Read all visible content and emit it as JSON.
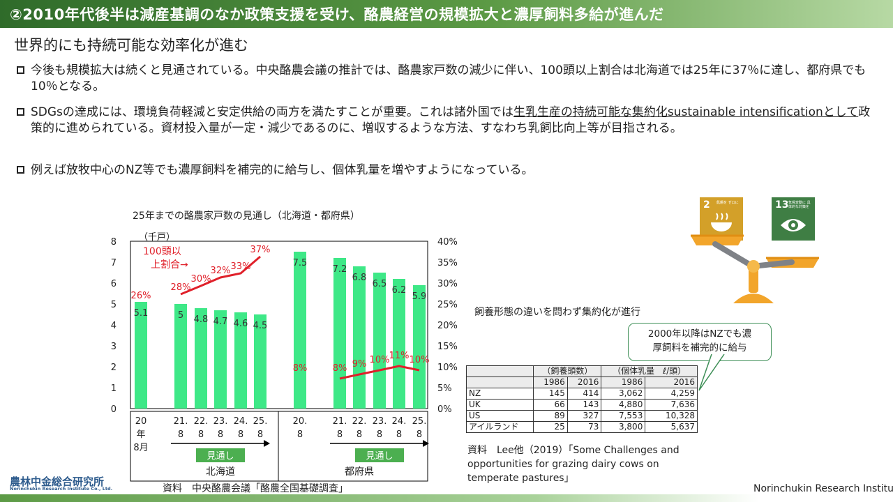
{
  "header": {
    "title": "②2010年代後半は減産基調のなか政策支援を受け、酪農経営の規模拡大と濃厚飼料多給が進んだ"
  },
  "subtitle": "世界的にも持続可能な効率化が進む",
  "bullets": [
    {
      "text": "今後も規模拡大は続くと見通されている。中央酪農会議の推計では、酪農家戸数の減少に伴い、100頭以上割合は北海道では25年に37％に達し、都府県でも10％となる。"
    },
    {
      "pre": "SDGsの達成には、環境負荷軽減と安定供給の両方を満たすことが重要。これは諸外国では",
      "underlined": "生乳生産の持続可能な集約化sustainable intensificationとして",
      "post": "政策的に進められている。資材投入量が一定・減少であるのに、増収するような方法、すなわち乳飼比向上等が目指される。"
    },
    {
      "text": "例えば放牧中心のNZ等でも濃厚飼料を補完的に給与し、個体乳量を増やすようになっている。"
    }
  ],
  "chart_data": {
    "type": "bar",
    "title": "25年までの酪農家戸数の見通し（北海道・都府県）",
    "ylabel": "（千戸）",
    "ylim": [
      0,
      8
    ],
    "y2lim": [
      0,
      0.4
    ],
    "y_ticks": [
      "0",
      "1",
      "2",
      "3",
      "4",
      "5",
      "6",
      "7",
      "8"
    ],
    "y2_ticks": [
      "0%",
      "5%",
      "10%",
      "15%",
      "20%",
      "25%",
      "30%",
      "35%",
      "40%"
    ],
    "annotation": "100頭以上割合→",
    "forecast_label": "見通し",
    "groups": [
      {
        "name": "北海道",
        "categories": [
          "20年8月",
          "21.8",
          "22.8",
          "23.8",
          "24.8",
          "25.8"
        ],
        "cat_lines": [
          [
            "20",
            "年",
            "8月"
          ],
          [
            "21.",
            "8"
          ],
          [
            "22.",
            "8"
          ],
          [
            "23.",
            "8"
          ],
          [
            "24.",
            "8"
          ],
          [
            "25.",
            "8"
          ]
        ],
        "values": [
          5.1,
          5.0,
          4.8,
          4.7,
          4.6,
          4.5
        ],
        "share": [
          0.26,
          0.28,
          0.3,
          0.32,
          0.33,
          0.37
        ],
        "share_labels": [
          "26%",
          "28%",
          "30%",
          "32%",
          "33%",
          "37%"
        ]
      },
      {
        "name": "都府県",
        "categories": [
          "20.8",
          "21.8",
          "22.8",
          "23.8",
          "24.8",
          "25.8"
        ],
        "cat_lines": [
          [
            "20.",
            "8"
          ],
          [
            "21.",
            "8"
          ],
          [
            "22.",
            "8"
          ],
          [
            "23.",
            "8"
          ],
          [
            "24.",
            "8"
          ],
          [
            "25.",
            "8"
          ]
        ],
        "values": [
          7.5,
          7.2,
          6.8,
          6.5,
          6.2,
          5.9
        ],
        "share": [
          0.08,
          0.08,
          0.09,
          0.1,
          0.11,
          0.1
        ],
        "share_labels": [
          "8%",
          "8%",
          "9%",
          "10%",
          "11%",
          "10%"
        ]
      }
    ],
    "colors": {
      "bar": "#3ee887",
      "share_line": "#e0202a",
      "forecast": "#4caf50"
    }
  },
  "chart_source": "資料　中央酪農会議「酪農全国基礎調査」",
  "right_note": "飼養形態の違いを問わず集約化が進行",
  "callout": {
    "line1": "2000年以降はNZでも濃",
    "line2": "厚飼料を補完的に給与"
  },
  "table": {
    "group_headers": [
      "（飼養頭数）",
      "（個体乳量　ℓ/頭）"
    ],
    "years": [
      "1986",
      "2016",
      "1986",
      "2016"
    ],
    "rows": [
      {
        "country": "NZ",
        "vals": [
          "145",
          "414",
          "3,062",
          "4,259"
        ]
      },
      {
        "country": "UK",
        "vals": [
          "66",
          "143",
          "4,880",
          "7,636"
        ]
      },
      {
        "country": "US",
        "vals": [
          "89",
          "327",
          "7,553",
          "10,328"
        ]
      },
      {
        "country": "アイルランド",
        "vals": [
          "25",
          "73",
          "3,800",
          "5,637"
        ]
      }
    ]
  },
  "table_source": "資料　Lee他（2019）「Some Challenges and opportunities for grazing dairy cows on temperate pastures」",
  "sdgs": [
    {
      "number": "2",
      "label": "飢餓を ゼロに",
      "color": "#d3a029"
    },
    {
      "number": "13",
      "label": "気候変動に 具体的な対策を",
      "color": "#3f7e44"
    }
  ],
  "logo": {
    "jp": "農林中金総合研究所",
    "en": "Norinchukin Research Institute Co., Ltd."
  },
  "footer": {
    "org": "Norinchukin Research Institute"
  }
}
